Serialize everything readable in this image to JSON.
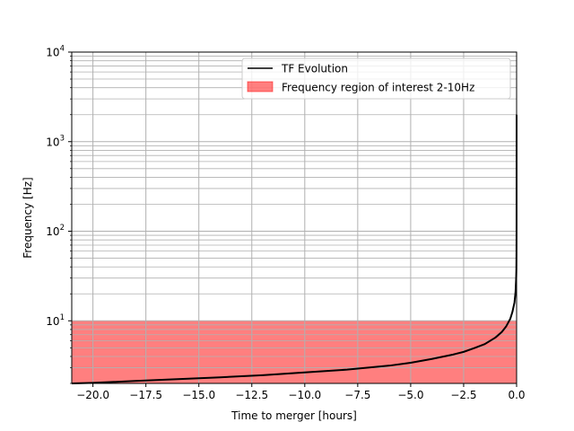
{
  "chart_data": {
    "type": "line",
    "xlabel": "Time to merger [hours]",
    "ylabel": "Frequency [Hz]",
    "xlim": [
      -21.0,
      0.0
    ],
    "ylim": [
      2.0,
      10000.0
    ],
    "yscale": "log",
    "grid": "major and minor, both axes",
    "legend_position": "upper-right",
    "x_ticks": [
      -20.0,
      -17.5,
      -15.0,
      -12.5,
      -10.0,
      -7.5,
      -5.0,
      -2.5,
      0.0
    ],
    "x_tick_labels": [
      "−20.0",
      "−17.5",
      "−15.0",
      "−12.5",
      "−10.0",
      "−7.5",
      "−5.0",
      "−2.5",
      "0.0"
    ],
    "y_ticks": [
      {
        "value": 10,
        "base": "10",
        "exp": "1"
      },
      {
        "value": 100,
        "base": "10",
        "exp": "2"
      },
      {
        "value": 1000,
        "base": "10",
        "exp": "3"
      },
      {
        "value": 10000,
        "base": "10",
        "exp": "4"
      }
    ],
    "series": [
      {
        "name": "TF Evolution",
        "color": "#000000",
        "x": [
          -21.0,
          -20.0,
          -18.0,
          -16.0,
          -14.0,
          -12.0,
          -10.0,
          -8.0,
          -6.0,
          -5.0,
          -4.0,
          -3.0,
          -2.5,
          -2.0,
          -1.5,
          -1.0,
          -0.7,
          -0.5,
          -0.3,
          -0.2,
          -0.1,
          -0.05,
          -0.02,
          -0.01,
          -0.005,
          -0.002,
          0.0
        ],
        "y": [
          2.0,
          2.03,
          2.13,
          2.23,
          2.34,
          2.47,
          2.65,
          2.85,
          3.16,
          3.4,
          3.75,
          4.2,
          4.5,
          4.95,
          5.5,
          6.5,
          7.5,
          8.6,
          10.5,
          12.5,
          16.0,
          21.0,
          30.0,
          38.0,
          60.0,
          120.0,
          2000.0
        ]
      }
    ],
    "shaded_regions": [
      {
        "name": "Frequency region of interest 2-10Hz",
        "y_from": 2.0,
        "y_to": 10.0,
        "color": "#ff0000",
        "alpha": 0.5
      }
    ]
  }
}
